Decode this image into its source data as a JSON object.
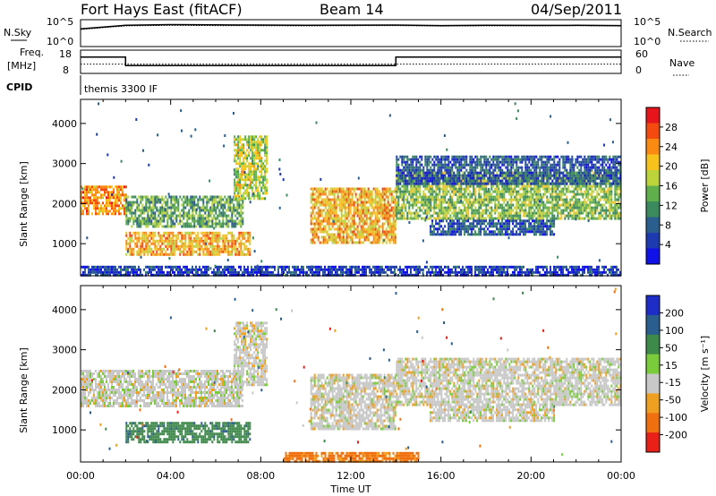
{
  "header": {
    "station": "Fort Hays East (fitACF)",
    "beam": "Beam 14",
    "date": "04/Sep/2011"
  },
  "panels": {
    "nsky_label": "N.Sky",
    "nsearch_label": "N.Search",
    "nsky_ticks": [
      "10^5",
      "10^0"
    ],
    "nsearch_ticks": [
      "10^5",
      "10^0"
    ],
    "freq_label_1": "Freq.",
    "freq_label_2": "[MHz]",
    "freq_ticks": [
      "18",
      "8"
    ],
    "nave_label": "Nave",
    "nave_ticks": [
      "60",
      "0"
    ],
    "cpid_label": "CPID",
    "cpid_text": "themis 3300 IF"
  },
  "chart_data": [
    {
      "type": "line",
      "name": "noise",
      "series": [
        {
          "name": "N.Sky",
          "x": [
            0,
            2,
            4,
            6,
            8,
            10,
            12,
            14,
            16,
            18,
            20,
            22,
            24
          ],
          "y": [
            2000,
            9000,
            12000,
            11000,
            10000,
            9000,
            9500,
            10000,
            8000,
            9000,
            8500,
            9000,
            8000
          ]
        },
        {
          "name": "N.Search",
          "x": [
            0,
            2,
            4,
            6,
            8,
            10,
            12,
            14,
            16,
            18,
            20,
            22,
            24
          ],
          "y": [
            1500,
            7000,
            9000,
            8000,
            7500,
            7000,
            7500,
            8000,
            6500,
            7000,
            7000,
            7500,
            6500
          ]
        }
      ],
      "yscale": "log",
      "ylim": [
        1,
        100000
      ]
    },
    {
      "type": "line",
      "name": "frequency",
      "series": [
        {
          "name": "Freq.",
          "x": [
            0,
            2,
            2,
            14,
            14,
            24
          ],
          "y": [
            15,
            15,
            11.4,
            11.4,
            15,
            15
          ]
        },
        {
          "name": "Nave",
          "x": [
            0,
            24
          ],
          "y": [
            12,
            12
          ]
        }
      ],
      "ylim": [
        8,
        18
      ]
    },
    {
      "type": "heatmap",
      "name": "power",
      "xlabel": "",
      "ylabel": "Slant Range [km]",
      "xlim": [
        0,
        24
      ],
      "ylim": [
        200,
        4600
      ],
      "colorbar": {
        "label": "Power [dB]",
        "ticks": [
          "28",
          "24",
          "20",
          "16",
          "12",
          "8",
          "4"
        ],
        "colors": [
          "#e8141c",
          "#f44a10",
          "#fb8a12",
          "#f8c21c",
          "#bcd43a",
          "#5fb04c",
          "#3a8a5e",
          "#2a5e8e",
          "#1e3ab0",
          "#1010e8"
        ]
      },
      "regions": [
        {
          "x": [
            0.0,
            2.0
          ],
          "y": [
            1750,
            2450
          ],
          "value": 24
        },
        {
          "x": [
            2.0,
            7.2
          ],
          "y": [
            1450,
            2200
          ],
          "value": 14
        },
        {
          "x": [
            2.0,
            7.5
          ],
          "y": [
            700,
            1300
          ],
          "value": 22
        },
        {
          "x": [
            6.8,
            8.3
          ],
          "y": [
            2100,
            3700
          ],
          "value": 18
        },
        {
          "x": [
            10.2,
            14.0
          ],
          "y": [
            1000,
            2400
          ],
          "value": 22
        },
        {
          "x": [
            14.0,
            24.0
          ],
          "y": [
            1600,
            2800
          ],
          "value": 16
        },
        {
          "x": [
            15.5,
            21.0
          ],
          "y": [
            1250,
            1600
          ],
          "value": 8
        },
        {
          "x": [
            14.0,
            24.0
          ],
          "y": [
            2500,
            3200
          ],
          "value": 8
        },
        {
          "x": [
            0.0,
            24.0
          ],
          "y": [
            200,
            450
          ],
          "value": 6
        }
      ]
    },
    {
      "type": "heatmap",
      "name": "velocity",
      "xlabel": "Time UT",
      "ylabel": "Slant Range [km]",
      "xlim": [
        0,
        24
      ],
      "ylim": [
        200,
        4600
      ],
      "xticks": [
        "00:00",
        "04:00",
        "08:00",
        "12:00",
        "16:00",
        "20:00",
        "00:00"
      ],
      "yticks": [
        "1000",
        "2000",
        "3000",
        "4000"
      ],
      "colorbar": {
        "label": "Velocity [m s⁻¹]",
        "ticks": [
          "200",
          "100",
          "50",
          "15",
          "-15",
          "-50",
          "-100",
          "-200"
        ],
        "colors": [
          "#1e2cc8",
          "#2a5e8e",
          "#3d8a4a",
          "#7acc3a",
          "#c8c8c8",
          "#f0a020",
          "#f07010",
          "#e82018"
        ]
      },
      "regions": [
        {
          "x": [
            0.0,
            7.2
          ],
          "y": [
            1600,
            2500
          ],
          "value": 0
        },
        {
          "x": [
            2.0,
            7.5
          ],
          "y": [
            700,
            1200
          ],
          "value": 60
        },
        {
          "x": [
            6.8,
            8.3
          ],
          "y": [
            2100,
            3700
          ],
          "value": 0
        },
        {
          "x": [
            10.2,
            14.0
          ],
          "y": [
            1000,
            2400
          ],
          "value": 0
        },
        {
          "x": [
            14.0,
            24.0
          ],
          "y": [
            1600,
            2800
          ],
          "value": 0
        },
        {
          "x": [
            15.5,
            21.0
          ],
          "y": [
            1250,
            1600
          ],
          "value": 0
        },
        {
          "x": [
            9.0,
            15.0
          ],
          "y": [
            200,
            450
          ],
          "value": -60
        }
      ]
    }
  ]
}
